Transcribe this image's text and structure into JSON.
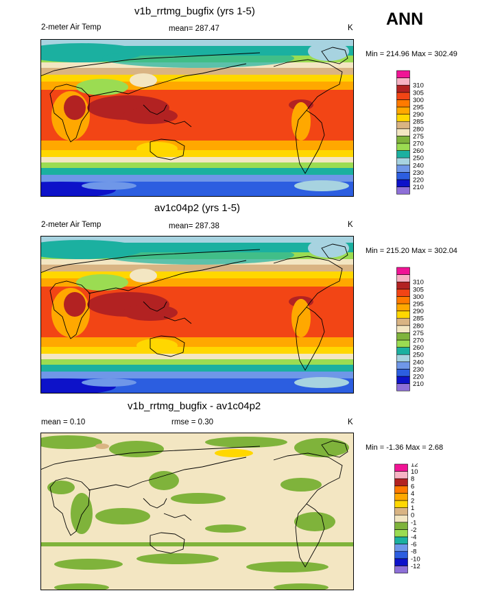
{
  "season": "ANN",
  "colors": {
    "temp_scale": [
      "#8e70d8",
      "#0d12c9",
      "#2c5ee0",
      "#6f97e8",
      "#a7d3e0",
      "#1bb0a0",
      "#9bdc52",
      "#7fb33b",
      "#f3e6c2",
      "#d9b483",
      "#ffd700",
      "#ffa800",
      "#ff7a00",
      "#f24515",
      "#b22222",
      "#f7b3c4",
      "#f01495"
    ],
    "diff_scale": [
      "#8e70d8",
      "#0d12c9",
      "#2c5ee0",
      "#6f97e8",
      "#1bb0a0",
      "#9bdc52",
      "#7fb33b",
      "#f3e6c2",
      "#d9b483",
      "#ffd700",
      "#ffa800",
      "#ff7a00",
      "#b22222",
      "#f7b3c4",
      "#f01495"
    ]
  },
  "chart_data": [
    {
      "type": "heatmap",
      "title": "v1b_rrtmg_bugfix (yrs 1-5)",
      "variable": "2-meter Air Temp",
      "mean_label": "mean= 287.47",
      "units": "K",
      "minmax_label": "Min = 214.96 Max = 302.49",
      "min": 214.96,
      "max": 302.49,
      "mean": 287.47,
      "levels": [
        "210",
        "220",
        "230",
        "240",
        "250",
        "260",
        "270",
        "275",
        "280",
        "285",
        "290",
        "295",
        "300",
        "305",
        "310"
      ]
    },
    {
      "type": "heatmap",
      "title": "av1c04p2 (yrs 1-5)",
      "variable": "2-meter Air Temp",
      "mean_label": "mean= 287.38",
      "units": "K",
      "minmax_label": "Min = 215.20 Max = 302.04",
      "min": 215.2,
      "max": 302.04,
      "mean": 287.38,
      "levels": [
        "210",
        "220",
        "230",
        "240",
        "250",
        "260",
        "270",
        "275",
        "280",
        "285",
        "290",
        "295",
        "300",
        "305",
        "310"
      ]
    },
    {
      "type": "heatmap",
      "title": "v1b_rrtmg_bugfix - av1c04p2",
      "mean_label": "mean =   0.10",
      "rmse_label": "rmse =   0.30",
      "units": "K",
      "minmax_label": "Min =  -1.36 Max =   2.68",
      "min": -1.36,
      "max": 2.68,
      "mean": 0.1,
      "rmse": 0.3,
      "levels": [
        "-12",
        "-10",
        "-8",
        "-6",
        "-4",
        "-2",
        "-1",
        "0",
        "1",
        "2",
        "4",
        "6",
        "8",
        "10",
        "12"
      ]
    }
  ]
}
